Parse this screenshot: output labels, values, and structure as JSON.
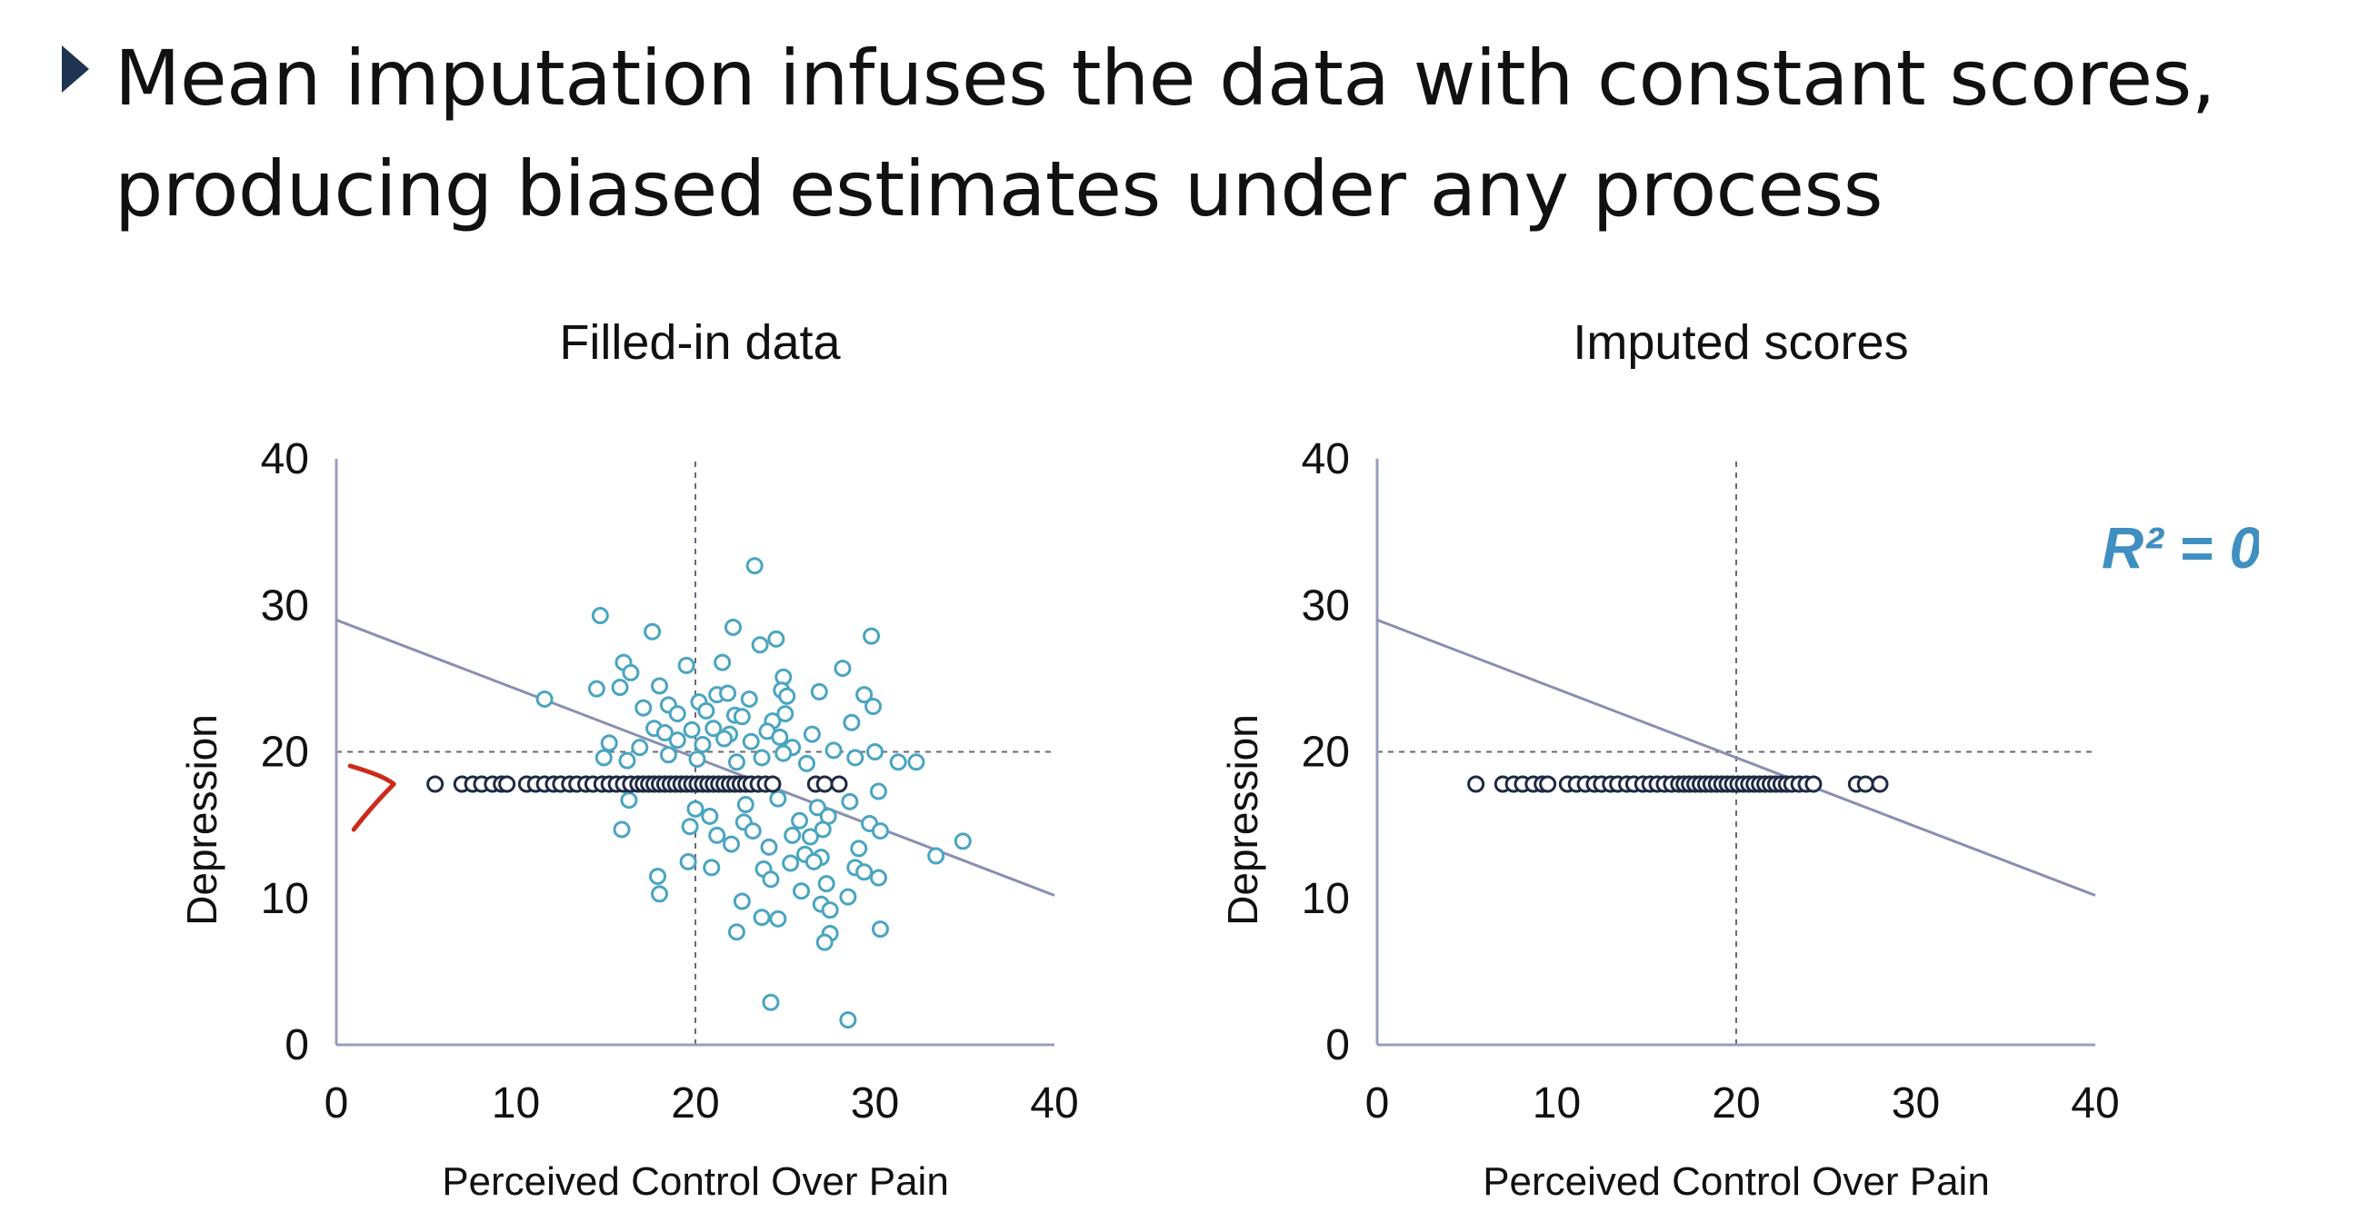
{
  "slide": {
    "title_line1": "Mean imputation infuses the data with constant scores,",
    "title_line2": "producing biased estimates under any process",
    "bullet_icon": "triangle-bullet-icon"
  },
  "colors": {
    "observed_points": "#4aa5c0",
    "imputed_points": "#1f2a44",
    "regression_line": "#8a8fb0",
    "axis": "#9a9cbf",
    "reference_lines": "#6a6a7a",
    "annotation_text": "#3f8fc0",
    "handwritten_arrow": "#cc2a1a"
  },
  "chart_data": [
    {
      "type": "scatter",
      "title": "Filled-in data",
      "xlabel": "Perceived Control Over Pain",
      "ylabel": "Depression",
      "xlim": [
        0,
        40
      ],
      "ylim": [
        0,
        40
      ],
      "xticks": [
        "0",
        "10",
        "20",
        "30",
        "40"
      ],
      "yticks": [
        "0",
        "10",
        "20",
        "30",
        "40"
      ],
      "grid": false,
      "reference_lines": {
        "x": 20,
        "y": 20
      },
      "regression_line": {
        "x": [
          0,
          40
        ],
        "y": [
          29,
          10.2
        ]
      },
      "series": [
        {
          "points": [
            [
              23.3,
              32.7
            ],
            [
              14.7,
              29.3
            ],
            [
              17.6,
              28.2
            ],
            [
              22.1,
              28.5
            ],
            [
              24.5,
              27.7
            ],
            [
              23.6,
              27.3
            ],
            [
              29.8,
              27.9
            ],
            [
              16.0,
              26.1
            ],
            [
              16.4,
              25.4
            ],
            [
              19.5,
              25.9
            ],
            [
              21.5,
              26.1
            ],
            [
              28.2,
              25.7
            ],
            [
              24.9,
              25.1
            ],
            [
              14.5,
              24.3
            ],
            [
              15.8,
              24.4
            ],
            [
              18.0,
              24.5
            ],
            [
              21.2,
              23.9
            ],
            [
              21.8,
              24.0
            ],
            [
              24.8,
              24.2
            ],
            [
              26.9,
              24.1
            ],
            [
              29.4,
              23.9
            ],
            [
              11.6,
              23.6
            ],
            [
              17.1,
              23.0
            ],
            [
              18.5,
              23.2
            ],
            [
              20.2,
              23.4
            ],
            [
              23.0,
              23.6
            ],
            [
              25.1,
              23.8
            ],
            [
              29.9,
              23.1
            ],
            [
              19.0,
              22.6
            ],
            [
              20.6,
              22.8
            ],
            [
              22.2,
              22.5
            ],
            [
              22.6,
              22.4
            ],
            [
              24.3,
              22.1
            ],
            [
              25.0,
              22.6
            ],
            [
              28.7,
              22.0
            ],
            [
              17.7,
              21.6
            ],
            [
              18.3,
              21.3
            ],
            [
              19.8,
              21.5
            ],
            [
              21.0,
              21.6
            ],
            [
              21.9,
              21.2
            ],
            [
              24.0,
              21.4
            ],
            [
              24.7,
              21.0
            ],
            [
              26.5,
              21.2
            ],
            [
              15.2,
              20.6
            ],
            [
              16.9,
              20.3
            ],
            [
              19.0,
              20.8
            ],
            [
              20.4,
              20.5
            ],
            [
              21.6,
              20.9
            ],
            [
              23.1,
              20.7
            ],
            [
              25.4,
              20.3
            ],
            [
              27.7,
              20.1
            ],
            [
              30.0,
              20.0
            ],
            [
              14.9,
              19.6
            ],
            [
              16.2,
              19.4
            ],
            [
              18.5,
              19.8
            ],
            [
              20.1,
              19.5
            ],
            [
              22.3,
              19.3
            ],
            [
              23.7,
              19.6
            ],
            [
              24.9,
              19.9
            ],
            [
              26.2,
              19.2
            ],
            [
              28.9,
              19.6
            ],
            [
              31.3,
              19.3
            ],
            [
              32.3,
              19.3
            ],
            [
              16.3,
              16.7
            ],
            [
              20.0,
              16.1
            ],
            [
              22.8,
              16.4
            ],
            [
              24.6,
              16.8
            ],
            [
              26.8,
              16.2
            ],
            [
              28.6,
              16.6
            ],
            [
              30.2,
              17.3
            ],
            [
              20.8,
              15.6
            ],
            [
              22.7,
              15.2
            ],
            [
              25.8,
              15.3
            ],
            [
              27.4,
              15.6
            ],
            [
              29.7,
              15.1
            ],
            [
              15.9,
              14.7
            ],
            [
              19.7,
              14.9
            ],
            [
              21.2,
              14.3
            ],
            [
              23.2,
              14.6
            ],
            [
              25.4,
              14.3
            ],
            [
              26.4,
              14.2
            ],
            [
              27.1,
              14.7
            ],
            [
              30.3,
              14.6
            ],
            [
              34.9,
              13.9
            ],
            [
              22.0,
              13.7
            ],
            [
              24.1,
              13.5
            ],
            [
              26.1,
              13.0
            ],
            [
              27.0,
              12.8
            ],
            [
              29.1,
              13.4
            ],
            [
              33.4,
              12.9
            ],
            [
              19.6,
              12.5
            ],
            [
              20.9,
              12.1
            ],
            [
              23.8,
              12.0
            ],
            [
              25.3,
              12.4
            ],
            [
              26.6,
              12.5
            ],
            [
              28.9,
              12.1
            ],
            [
              29.4,
              11.8
            ],
            [
              17.9,
              11.5
            ],
            [
              24.2,
              11.3
            ],
            [
              27.3,
              11.0
            ],
            [
              30.2,
              11.4
            ],
            [
              18.0,
              10.3
            ],
            [
              25.9,
              10.5
            ],
            [
              28.5,
              10.1
            ],
            [
              22.6,
              9.8
            ],
            [
              27.0,
              9.6
            ],
            [
              27.5,
              9.2
            ],
            [
              23.7,
              8.7
            ],
            [
              24.6,
              8.6
            ],
            [
              30.3,
              7.9
            ],
            [
              22.3,
              7.7
            ],
            [
              27.5,
              7.6
            ],
            [
              27.2,
              7.0
            ],
            [
              24.2,
              2.9
            ],
            [
              28.5,
              1.7
            ]
          ]
        },
        {
          "points": [
            [
              5.5,
              17.8
            ],
            [
              7.0,
              17.8
            ],
            [
              7.6,
              17.8
            ],
            [
              8.1,
              17.8
            ],
            [
              8.7,
              17.8
            ],
            [
              9.2,
              17.8
            ],
            [
              9.5,
              17.8
            ],
            [
              10.6,
              17.8
            ],
            [
              11.1,
              17.8
            ],
            [
              11.6,
              17.8
            ],
            [
              12.1,
              17.8
            ],
            [
              12.5,
              17.8
            ],
            [
              13.0,
              17.8
            ],
            [
              13.4,
              17.8
            ],
            [
              13.9,
              17.8
            ],
            [
              14.3,
              17.8
            ],
            [
              14.8,
              17.8
            ],
            [
              15.2,
              17.8
            ],
            [
              15.6,
              17.8
            ],
            [
              16.0,
              17.8
            ],
            [
              16.4,
              17.8
            ],
            [
              16.8,
              17.8
            ],
            [
              17.1,
              17.8
            ],
            [
              17.4,
              17.8
            ],
            [
              17.7,
              17.8
            ],
            [
              18.0,
              17.8
            ],
            [
              18.3,
              17.8
            ],
            [
              18.6,
              17.8
            ],
            [
              18.9,
              17.8
            ],
            [
              19.2,
              17.8
            ],
            [
              19.5,
              17.8
            ],
            [
              19.8,
              17.8
            ],
            [
              20.1,
              17.8
            ],
            [
              20.4,
              17.8
            ],
            [
              20.7,
              17.8
            ],
            [
              21.0,
              17.8
            ],
            [
              21.3,
              17.8
            ],
            [
              21.6,
              17.8
            ],
            [
              21.9,
              17.8
            ],
            [
              22.2,
              17.8
            ],
            [
              22.5,
              17.8
            ],
            [
              22.8,
              17.8
            ],
            [
              23.1,
              17.8
            ],
            [
              23.5,
              17.8
            ],
            [
              23.9,
              17.8
            ],
            [
              24.3,
              17.8
            ],
            [
              26.7,
              17.8
            ],
            [
              27.2,
              17.8
            ],
            [
              28.0,
              17.8
            ]
          ]
        }
      ]
    },
    {
      "type": "scatter",
      "title": "Imputed scores",
      "xlabel": "Perceived Control Over Pain",
      "ylabel": "Depression",
      "xlim": [
        0,
        40
      ],
      "ylim": [
        0,
        40
      ],
      "xticks": [
        "0",
        "10",
        "20",
        "30",
        "40"
      ],
      "yticks": [
        "0",
        "10",
        "20",
        "30",
        "40"
      ],
      "grid": false,
      "reference_lines": {
        "x": 20,
        "y": 20
      },
      "regression_line": {
        "x": [
          0,
          40
        ],
        "y": [
          29,
          10.2
        ]
      },
      "annotation": "R² = 0",
      "series": [
        {
          "points": [
            [
              5.5,
              17.8
            ],
            [
              7.0,
              17.8
            ],
            [
              7.6,
              17.8
            ],
            [
              8.1,
              17.8
            ],
            [
              8.7,
              17.8
            ],
            [
              9.2,
              17.8
            ],
            [
              9.5,
              17.8
            ],
            [
              10.6,
              17.8
            ],
            [
              11.1,
              17.8
            ],
            [
              11.6,
              17.8
            ],
            [
              12.1,
              17.8
            ],
            [
              12.5,
              17.8
            ],
            [
              13.0,
              17.8
            ],
            [
              13.4,
              17.8
            ],
            [
              13.9,
              17.8
            ],
            [
              14.3,
              17.8
            ],
            [
              14.8,
              17.8
            ],
            [
              15.2,
              17.8
            ],
            [
              15.6,
              17.8
            ],
            [
              16.0,
              17.8
            ],
            [
              16.4,
              17.8
            ],
            [
              16.8,
              17.8
            ],
            [
              17.1,
              17.8
            ],
            [
              17.4,
              17.8
            ],
            [
              17.7,
              17.8
            ],
            [
              18.0,
              17.8
            ],
            [
              18.3,
              17.8
            ],
            [
              18.6,
              17.8
            ],
            [
              18.9,
              17.8
            ],
            [
              19.2,
              17.8
            ],
            [
              19.5,
              17.8
            ],
            [
              19.8,
              17.8
            ],
            [
              20.1,
              17.8
            ],
            [
              20.4,
              17.8
            ],
            [
              20.7,
              17.8
            ],
            [
              21.0,
              17.8
            ],
            [
              21.3,
              17.8
            ],
            [
              21.6,
              17.8
            ],
            [
              21.9,
              17.8
            ],
            [
              22.2,
              17.8
            ],
            [
              22.5,
              17.8
            ],
            [
              22.8,
              17.8
            ],
            [
              23.1,
              17.8
            ],
            [
              23.5,
              17.8
            ],
            [
              23.9,
              17.8
            ],
            [
              24.3,
              17.8
            ],
            [
              26.7,
              17.8
            ],
            [
              27.2,
              17.8
            ],
            [
              28.0,
              17.8
            ]
          ]
        }
      ]
    }
  ]
}
